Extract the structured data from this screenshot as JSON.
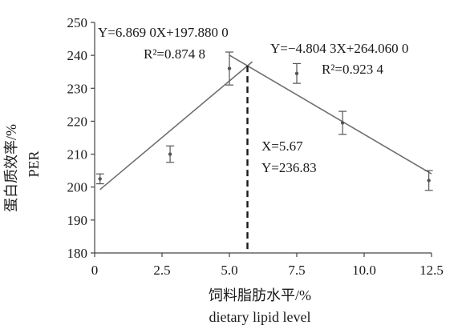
{
  "chart_data": {
    "type": "scatter",
    "x_axis": {
      "range": [
        0,
        12.5
      ],
      "ticks": [
        0,
        2.5,
        5.0,
        7.5,
        10.0,
        12.5
      ],
      "tick_labels": [
        "0",
        "2.5",
        "5.0",
        "7.5",
        "10.0",
        "12.5"
      ],
      "label_zh": "饲料脂肪水平/%",
      "label_en": "dietary lipid level"
    },
    "y_axis": {
      "range": [
        180,
        250
      ],
      "ticks": [
        180,
        190,
        200,
        210,
        220,
        230,
        240,
        250
      ],
      "tick_labels": [
        "180",
        "190",
        "200",
        "210",
        "220",
        "230",
        "240",
        "250"
      ],
      "label_zh": "蛋白质效率/%",
      "label_en": "PER"
    },
    "grid": false,
    "legend": "none",
    "points": [
      {
        "x": 0.2,
        "y": 202.5,
        "err": 1.5
      },
      {
        "x": 2.8,
        "y": 210.0,
        "err": 2.5
      },
      {
        "x": 5.0,
        "y": 236.0,
        "err": 5.0
      },
      {
        "x": 7.5,
        "y": 234.5,
        "err": 3.0
      },
      {
        "x": 9.2,
        "y": 219.5,
        "err": 3.5
      },
      {
        "x": 12.4,
        "y": 202.0,
        "err": 3.0
      }
    ],
    "regression_lines": [
      {
        "equation": "Y=6.869 0X+197.880 0",
        "r2_text": "R²=0.874 8",
        "slope": 6.869,
        "intercept": 197.88,
        "x_range": [
          0.2,
          5.85
        ]
      },
      {
        "equation": "Y=−4.804 3X+264.060 0",
        "r2_text": "R²=0.923 4",
        "slope": -4.8043,
        "intercept": 264.06,
        "x_range": [
          5.0,
          12.5
        ]
      }
    ],
    "intersection": {
      "x": 5.67,
      "y": 236.83,
      "x_text": "X=5.67",
      "y_text": "Y=236.83"
    },
    "colors": {
      "points": "#555555",
      "lines": "#6f6f6f",
      "axis": "#444444",
      "dashed": "#1a1a1a"
    }
  }
}
